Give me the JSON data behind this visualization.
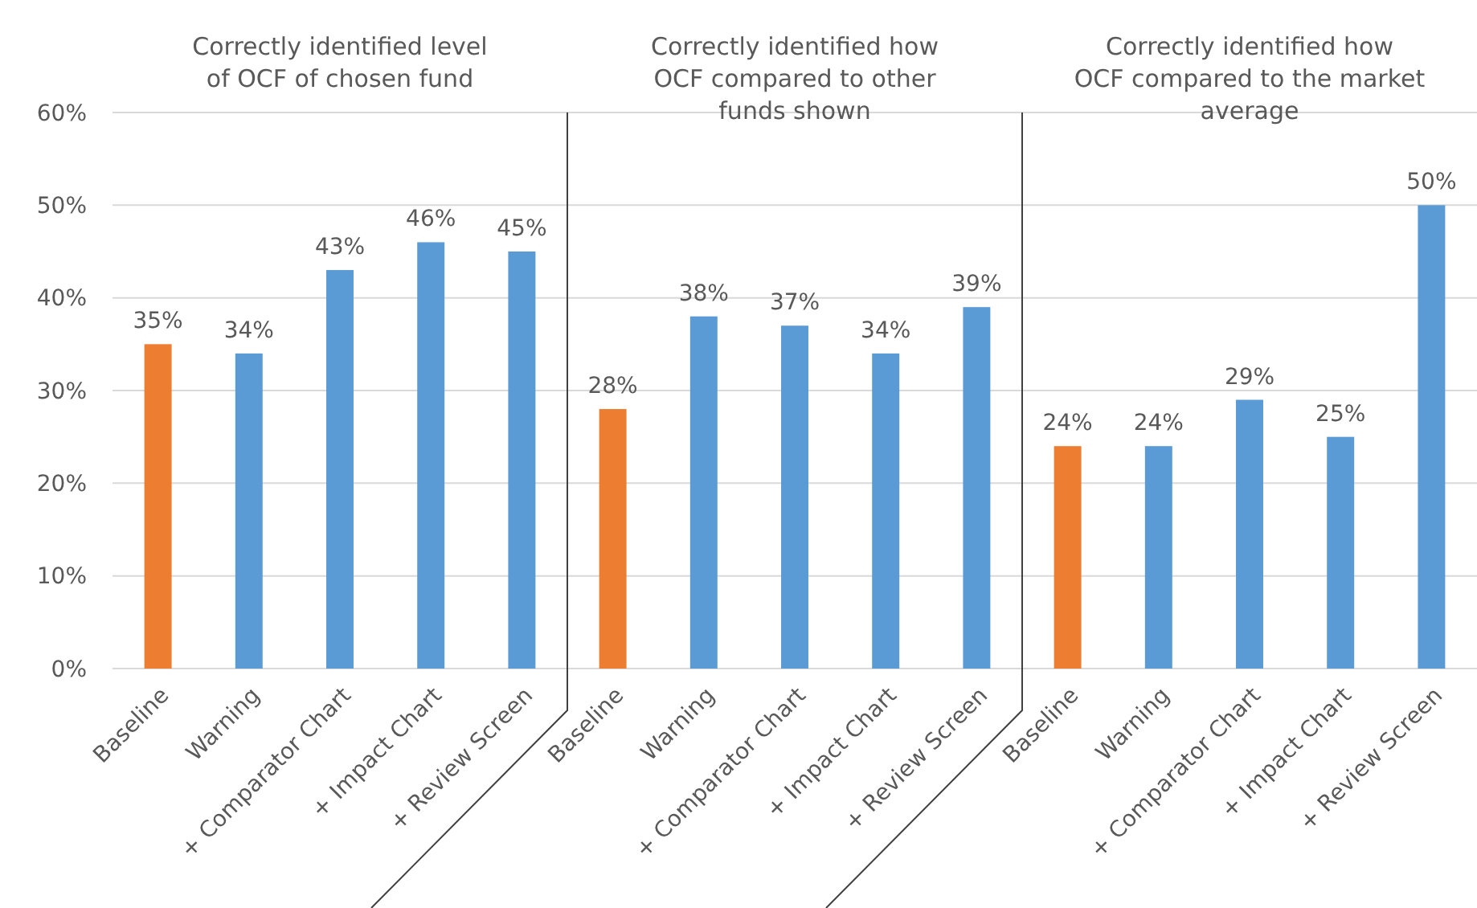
{
  "chart_data": [
    {
      "type": "bar",
      "title": "Correctly identified level of OCF of chosen fund",
      "categories": [
        "Baseline",
        "Warning",
        "+ Comparator Chart",
        "+ Impact Chart",
        "+ Review Screen"
      ],
      "values": [
        35,
        34,
        43,
        46,
        45
      ],
      "colors": [
        "#ed7d31",
        "#5b9bd5",
        "#5b9bd5",
        "#5b9bd5",
        "#5b9bd5"
      ],
      "data_labels": true,
      "value_labels": [
        "35%",
        "34%",
        "43%",
        "46%",
        "45%"
      ],
      "ylim": [
        0,
        60
      ],
      "yticks": [
        {
          "value": 0,
          "label": "0%"
        },
        {
          "value": 10,
          "label": "10%"
        },
        {
          "value": 20,
          "label": "20%"
        },
        {
          "value": 30,
          "label": "30%"
        },
        {
          "value": 40,
          "label": "40%"
        },
        {
          "value": 50,
          "label": "50%"
        },
        {
          "value": 60,
          "label": "60%"
        }
      ],
      "grid": "y"
    },
    {
      "type": "bar",
      "title": "Correctly identified how OCF compared to other funds shown",
      "categories": [
        "Baseline",
        "Warning",
        "+ Comparator Chart",
        "+ Impact Chart",
        "+ Review Screen"
      ],
      "values": [
        28,
        38,
        37,
        34,
        39
      ],
      "colors": [
        "#ed7d31",
        "#5b9bd5",
        "#5b9bd5",
        "#5b9bd5",
        "#5b9bd5"
      ],
      "data_labels": true,
      "value_labels": [
        "28%",
        "38%",
        "37%",
        "34%",
        "39%"
      ],
      "ylim": [
        0,
        60
      ],
      "yticks": [
        {
          "value": 0,
          "label": null
        },
        {
          "value": 10,
          "label": null
        },
        {
          "value": 20,
          "label": null
        },
        {
          "value": 30,
          "label": null
        },
        {
          "value": 40,
          "label": null
        },
        {
          "value": 50,
          "label": null
        },
        {
          "value": 60,
          "label": null
        }
      ],
      "grid": "y",
      "tick_labels": "x"
    },
    {
      "type": "bar",
      "title": "Correctly identified how OCF compared to the market average",
      "categories": [
        "Baseline",
        "Warning",
        "+ Comparator Chart",
        "+ Impact Chart",
        "+ Review Screen"
      ],
      "values": [
        24,
        24,
        29,
        25,
        50
      ],
      "colors": [
        "#ed7d31",
        "#5b9bd5",
        "#5b9bd5",
        "#5b9bd5",
        "#5b9bd5"
      ],
      "data_labels": true,
      "value_labels": [
        "24%",
        "24%",
        "29%",
        "25%",
        "50%"
      ],
      "ylim": [
        0,
        60
      ],
      "yticks": [
        {
          "value": 0,
          "label": null
        },
        {
          "value": 10,
          "label": null
        },
        {
          "value": 20,
          "label": null
        },
        {
          "value": 30,
          "label": null
        },
        {
          "value": 40,
          "label": null
        },
        {
          "value": 50,
          "label": null
        },
        {
          "value": 60,
          "label": null
        }
      ],
      "grid": "y",
      "tick_labels": "x"
    }
  ]
}
